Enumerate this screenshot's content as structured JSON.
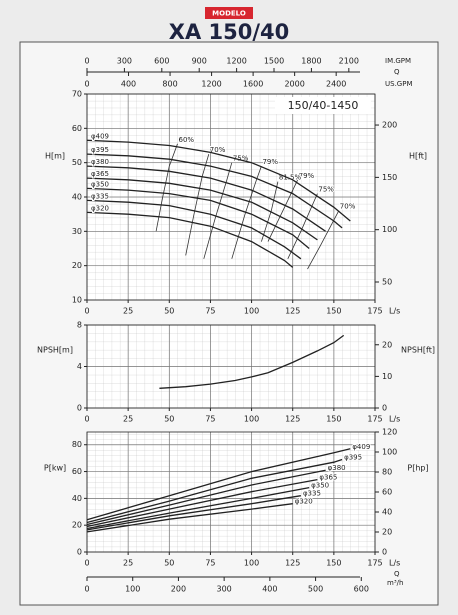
{
  "header": {
    "badge": "MODELO",
    "title": "XA 150/40"
  },
  "chart_data": [
    {
      "type": "line",
      "annotation": "150/40-1450",
      "ylabel": "H[m]",
      "y2label": "H[ft]",
      "xlabel": "L/s",
      "xlim": [
        0,
        175
      ],
      "xticks": [
        0,
        25,
        50,
        75,
        100,
        125,
        150,
        175
      ],
      "ylim": [
        10,
        70
      ],
      "yticks": [
        10,
        20,
        30,
        40,
        50,
        60,
        70
      ],
      "y2lim": [
        32.81,
        229.66
      ],
      "y2ticks": [
        50,
        100,
        150,
        200
      ],
      "grid": true,
      "minor_divisions": 5,
      "quantity_label": "Q",
      "top_axes": [
        {
          "name": "IM.GPM",
          "lim": [
            0,
            2310
          ],
          "ticks": [
            0,
            300,
            600,
            900,
            1200,
            1500,
            1800,
            2100
          ]
        },
        {
          "name": "US.GPM",
          "lim": [
            0,
            2774
          ],
          "ticks": [
            0,
            400,
            800,
            1200,
            1600,
            2000,
            2400
          ]
        }
      ],
      "series": [
        {
          "name": "φ409",
          "color": "#222222",
          "x": [
            0,
            25,
            50,
            75,
            100,
            125,
            150,
            160
          ],
          "values": [
            56.5,
            56,
            55,
            53,
            50,
            45,
            37,
            33
          ]
        },
        {
          "name": "φ395",
          "color": "#222222",
          "x": [
            0,
            25,
            50,
            75,
            100,
            125,
            150,
            155
          ],
          "values": [
            52.5,
            52,
            51,
            49,
            46,
            41,
            33,
            31
          ]
        },
        {
          "name": "φ380",
          "color": "#222222",
          "x": [
            0,
            25,
            50,
            75,
            100,
            125,
            145
          ],
          "values": [
            49,
            48.5,
            47.5,
            45.5,
            42,
            36.5,
            30
          ]
        },
        {
          "name": "φ365",
          "color": "#222222",
          "x": [
            0,
            25,
            50,
            75,
            100,
            125,
            140
          ],
          "values": [
            45.5,
            45,
            44,
            42,
            38.5,
            32.5,
            27.5
          ]
        },
        {
          "name": "φ350",
          "color": "#222222",
          "x": [
            0,
            25,
            50,
            75,
            100,
            125,
            135
          ],
          "values": [
            42.5,
            42,
            41,
            39,
            35,
            29,
            25
          ]
        },
        {
          "name": "φ335",
          "color": "#222222",
          "x": [
            0,
            25,
            50,
            75,
            100,
            120,
            130
          ],
          "values": [
            39,
            38.5,
            37.5,
            35,
            31,
            25.5,
            22
          ]
        },
        {
          "name": "φ320",
          "color": "#222222",
          "x": [
            0,
            25,
            50,
            75,
            100,
            120,
            125
          ],
          "values": [
            35.5,
            35,
            34,
            31.5,
            27,
            21.5,
            19.5
          ]
        }
      ],
      "efficiency_lines": [
        {
          "name": "60%",
          "color": "#333333",
          "x": [
            42,
            46,
            50,
            55
          ],
          "values": [
            30,
            40,
            49,
            55.5
          ]
        },
        {
          "name": "70%",
          "color": "#333333",
          "x": [
            60,
            65,
            70,
            74,
            null,
            134,
            142,
            153
          ],
          "values": [
            23,
            35,
            46,
            52.5,
            null,
            19,
            26,
            36
          ]
        },
        {
          "name": "75%",
          "color": "#333333",
          "x": [
            71,
            78,
            85,
            88,
            null,
            122,
            130,
            140
          ],
          "values": [
            22,
            34,
            45,
            50,
            null,
            22,
            30,
            41
          ]
        },
        {
          "name": "79%",
          "color": "#333333",
          "x": [
            88,
            96,
            103,
            106,
            null,
            110,
            118,
            128
          ],
          "values": [
            22,
            35,
            45,
            49,
            null,
            27,
            35,
            45
          ]
        },
        {
          "name": "81.5%",
          "color": "#333333",
          "x": [
            106,
            112,
            116
          ],
          "values": [
            27,
            36,
            44.5
          ]
        }
      ]
    },
    {
      "type": "line",
      "ylabel": "NPSH[m]",
      "y2label": "NPSH[ft]",
      "xlabel": "L/s",
      "xlim": [
        0,
        175
      ],
      "xticks": [
        0,
        25,
        50,
        75,
        100,
        125,
        150,
        175
      ],
      "ylim": [
        0,
        8
      ],
      "yticks": [
        0,
        4,
        8
      ],
      "y2lim": [
        0,
        26.25
      ],
      "y2ticks": [
        0,
        10,
        20
      ],
      "grid": true,
      "minor_divisions": 5,
      "series": [
        {
          "color": "#222222",
          "x": [
            44,
            60,
            75,
            90,
            100,
            110,
            125,
            140,
            150,
            156
          ],
          "values": [
            1.9,
            2.05,
            2.3,
            2.65,
            3.0,
            3.4,
            4.4,
            5.5,
            6.3,
            7.0
          ]
        }
      ]
    },
    {
      "type": "line",
      "ylabel": "P[kw]",
      "y2label": "P[hp]",
      "xlabel": "L/s",
      "xlim": [
        0,
        175
      ],
      "xticks": [
        0,
        25,
        50,
        75,
        100,
        125,
        150,
        175
      ],
      "ylim": [
        0,
        89.5
      ],
      "yticks": [
        0,
        20,
        40,
        60,
        80
      ],
      "y2lim": [
        0,
        120
      ],
      "y2ticks": [
        0,
        20,
        40,
        60,
        80,
        100,
        120
      ],
      "grid": true,
      "minor_divisions": 5,
      "quantity_label": "Q",
      "bottom_axes": [
        {
          "name": "m³/h",
          "lim": [
            0,
            630
          ],
          "ticks": [
            0,
            100,
            200,
            300,
            400,
            500,
            600
          ]
        }
      ],
      "series": [
        {
          "name": "φ409",
          "color": "#222222",
          "x": [
            0,
            50,
            100,
            150,
            160
          ],
          "values": [
            24,
            42,
            60,
            74,
            77
          ]
        },
        {
          "name": "φ395",
          "color": "#222222",
          "x": [
            0,
            50,
            100,
            150,
            155
          ],
          "values": [
            22,
            38,
            55,
            67,
            69
          ]
        },
        {
          "name": "φ380",
          "color": "#222222",
          "x": [
            0,
            50,
            100,
            145
          ],
          "values": [
            20.5,
            35,
            50,
            61
          ]
        },
        {
          "name": "φ365",
          "color": "#222222",
          "x": [
            0,
            50,
            100,
            140
          ],
          "values": [
            19,
            32,
            45,
            54
          ]
        },
        {
          "name": "φ350",
          "color": "#222222",
          "x": [
            0,
            50,
            100,
            135
          ],
          "values": [
            17.5,
            29,
            40,
            48
          ]
        },
        {
          "name": "φ335",
          "color": "#222222",
          "x": [
            0,
            50,
            100,
            130
          ],
          "values": [
            16.5,
            27,
            36,
            42
          ]
        },
        {
          "name": "φ320",
          "color": "#222222",
          "x": [
            0,
            50,
            100,
            125
          ],
          "values": [
            15,
            24.5,
            32,
            36
          ]
        }
      ]
    }
  ]
}
